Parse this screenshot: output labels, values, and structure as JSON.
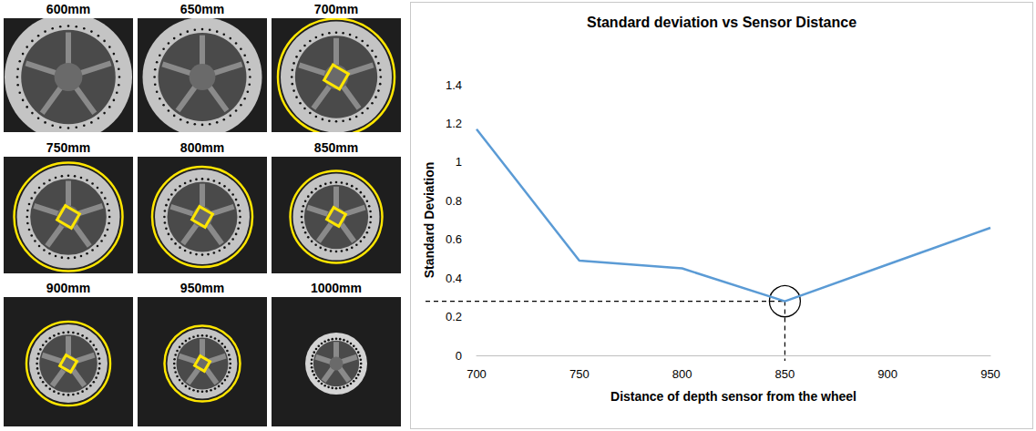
{
  "chart_data": {
    "type": "line",
    "title": "Standard deviation vs Sensor Distance",
    "x_label": "Distance of depth sensor from the wheel",
    "y_label": "Standard Deviation",
    "categories": [
      "700",
      "750",
      "800",
      "850",
      "900",
      "950"
    ],
    "values": [
      1.17,
      0.49,
      0.45,
      0.28,
      0.47,
      0.66
    ],
    "color": "#5b9bd5",
    "ylim": [
      0,
      1.4
    ],
    "yticks": [
      0,
      0.2,
      0.4,
      0.6,
      0.8,
      1,
      1.2,
      1.4
    ],
    "grid": false,
    "annotations": [
      {
        "x": "850",
        "y": 0.28,
        "marker": "circle",
        "line_style": "dashed"
      }
    ]
  },
  "images": [
    {
      "label": "600mm",
      "detected": false
    },
    {
      "label": "650mm",
      "detected": false
    },
    {
      "label": "700mm",
      "detected": true
    },
    {
      "label": "750mm",
      "detected": true
    },
    {
      "label": "800mm",
      "detected": true
    },
    {
      "label": "850mm",
      "detected": true
    },
    {
      "label": "900mm",
      "detected": true
    },
    {
      "label": "950mm",
      "detected": true
    },
    {
      "label": "1000mm",
      "detected": false
    }
  ]
}
